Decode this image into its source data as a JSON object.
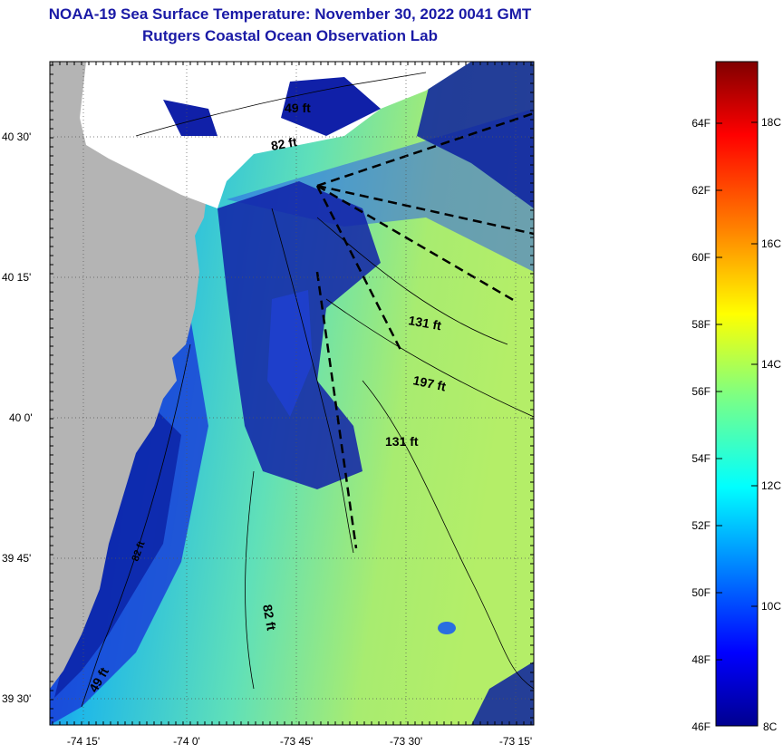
{
  "title": {
    "line1": "NOAA-19 Sea Surface Temperature:  November 30, 2022 0041 GMT",
    "line2": "Rutgers Coastal Ocean Observation Lab"
  },
  "map": {
    "lat_labels": [
      "40 30'",
      "40 15'",
      "40 0'",
      "39 45'",
      "39 30'"
    ],
    "lon_labels": [
      "-74 15'",
      "-74 0'",
      "-73 45'",
      "-73 30'",
      "-73 15'"
    ],
    "depth_labels": [
      "49 ft",
      "82 ft",
      "131 ft",
      "197 ft",
      "131 ft",
      "82 ft",
      "49 ft",
      "82 ft"
    ]
  },
  "colorbar": {
    "fahrenheit_labels": [
      "64F",
      "62F",
      "60F",
      "58F",
      "56F",
      "54F",
      "52F",
      "50F",
      "48F",
      "46F"
    ],
    "celsius_labels": [
      "18C",
      "16C",
      "14C",
      "12C",
      "10C",
      "8C"
    ],
    "colors": {
      "dark_red": "#800000",
      "red": "#ff0000",
      "orange": "#ff8000",
      "yellow": "#ffff00",
      "yellow_green": "#b0f060",
      "cyan": "#00ffff",
      "blue": "#0050ff",
      "navy": "#00008f"
    }
  },
  "colors": {
    "land": "#b4b4b4",
    "cloud": "#ffffff",
    "title": "#1a1aa6"
  }
}
